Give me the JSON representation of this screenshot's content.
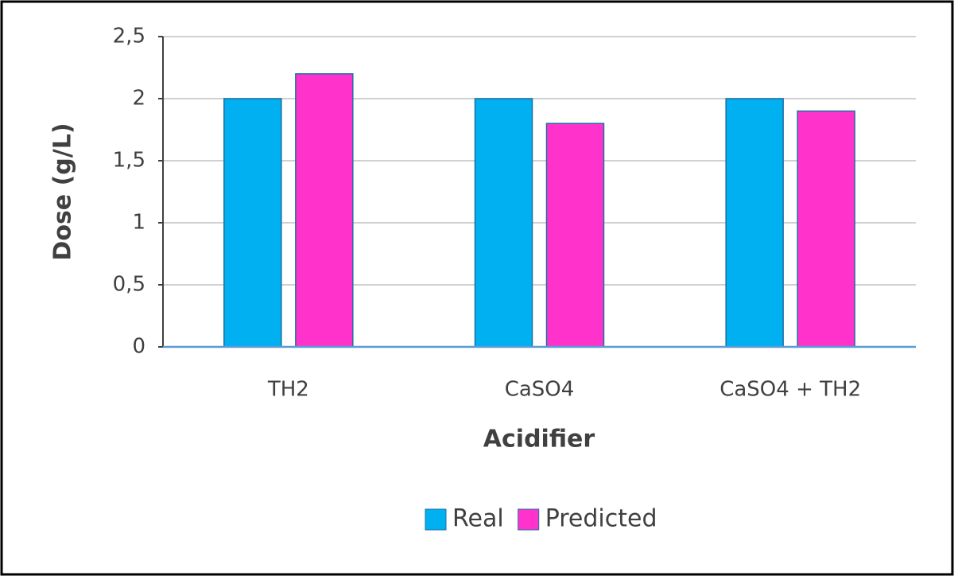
{
  "chart_data": {
    "type": "bar",
    "x_label": "Acidifier",
    "y_label": "Dose (g/L)",
    "categories": [
      "TH2",
      "CaSO4",
      "CaSO4 + TH2"
    ],
    "series": [
      {
        "name": "Real",
        "color": "#00b0f0",
        "values": [
          2,
          2,
          2
        ]
      },
      {
        "name": "Predicted",
        "color": "#ff33cc",
        "values": [
          2.2,
          1.8,
          1.9
        ]
      }
    ],
    "ylim": [
      0,
      2.5
    ],
    "yticks": [
      0,
      {
        "value": 0.5,
        "label": "0,5"
      },
      1,
      {
        "value": 1.5,
        "label": "1,5"
      },
      2,
      {
        "value": 2.5,
        "label": "2,5"
      }
    ],
    "grid": true,
    "legend": "bottom"
  }
}
